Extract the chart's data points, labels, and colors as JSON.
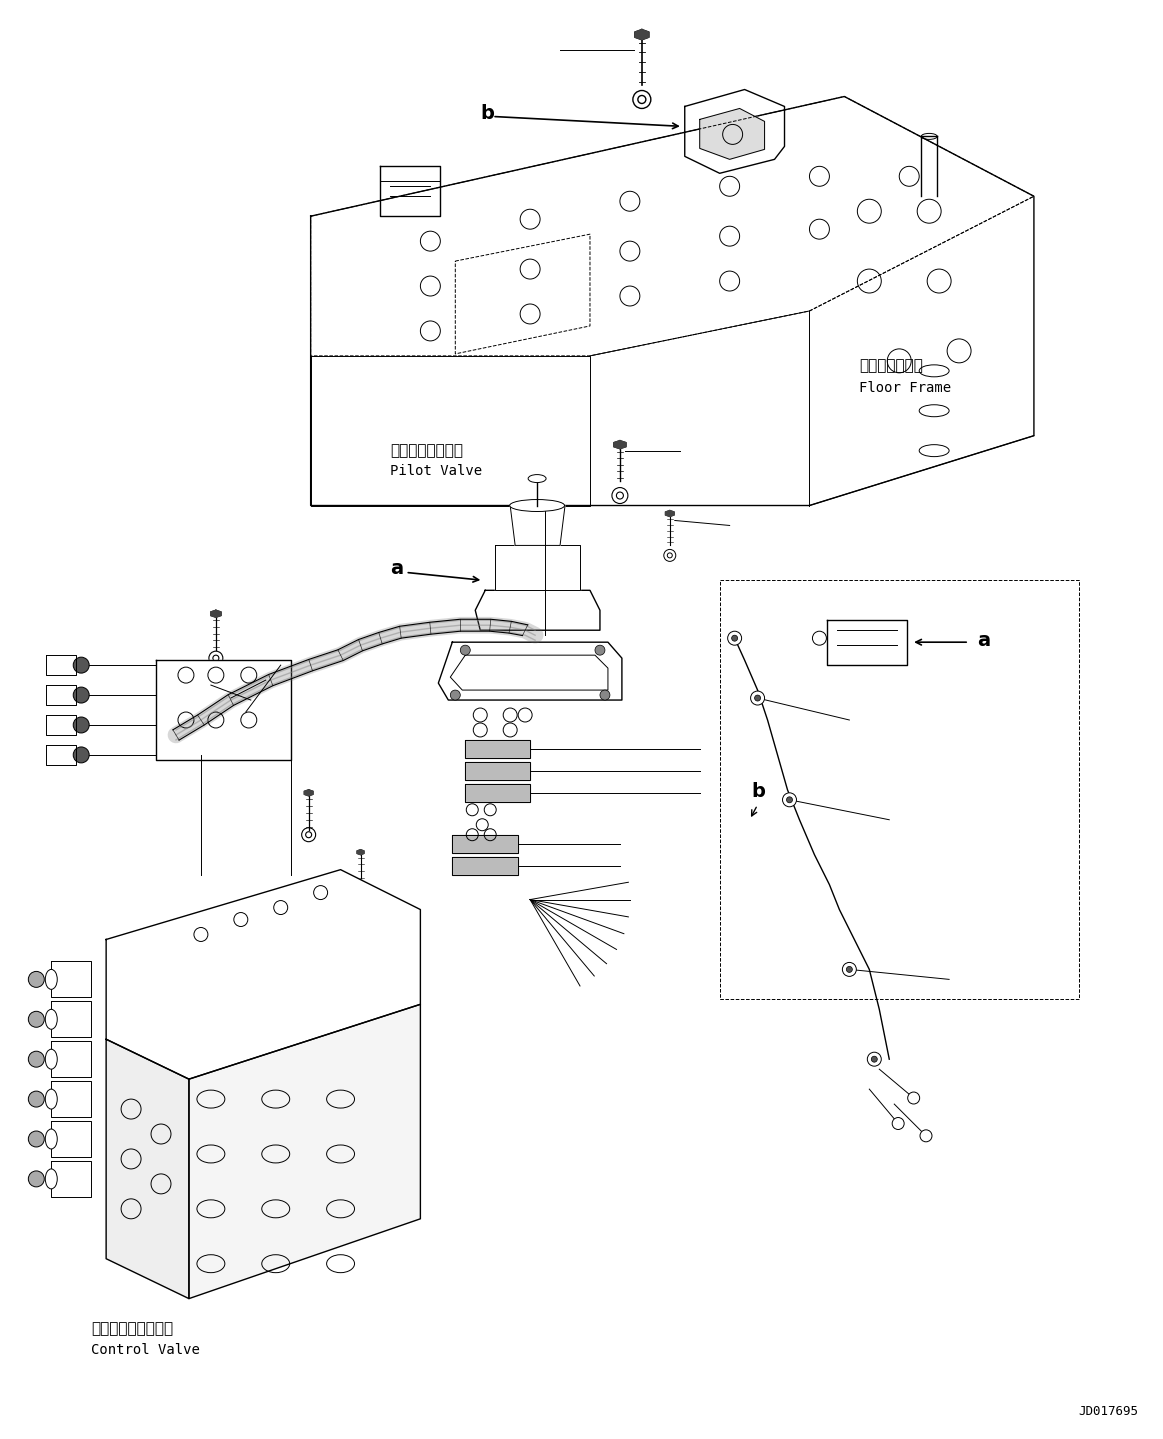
{
  "figure_width": 11.63,
  "figure_height": 14.39,
  "dpi": 100,
  "background_color": "#ffffff",
  "diagram_id": "JD017695",
  "labels": {
    "floor_frame_jp": "フロアフレーム",
    "floor_frame_en": "Floor Frame",
    "pilot_valve_jp": "パイロットバルブ",
    "pilot_valve_en": "Pilot Valve",
    "control_valve_jp": "コントロールバルブ",
    "control_valve_en": "Control Valve"
  },
  "text_color": "#000000",
  "line_color": "#000000",
  "font_size_jp": 11,
  "font_size_en": 10,
  "font_size_id": 9,
  "font_size_label": 12
}
